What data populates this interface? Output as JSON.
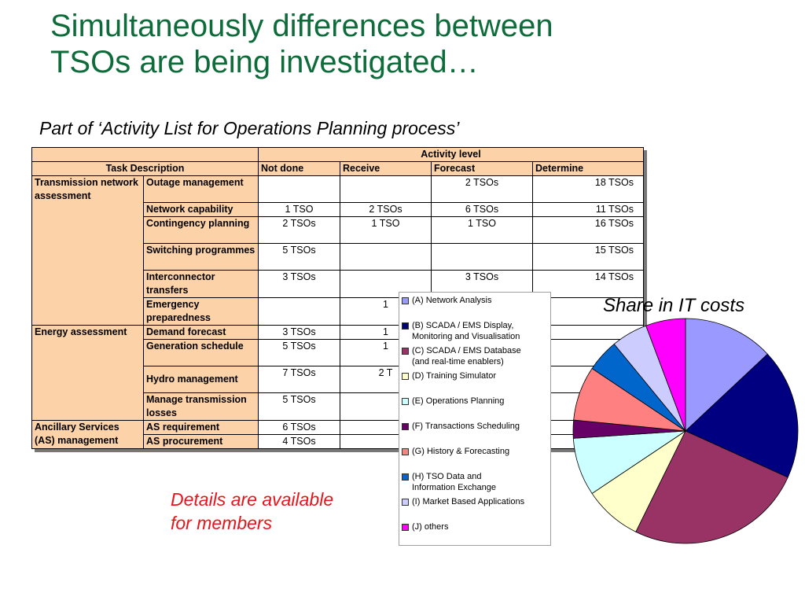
{
  "title": {
    "line1": "Simultaneously differences between",
    "line2": "TSOs are being investigated…"
  },
  "table_caption": "Part of ‘Activity List for Operations Planning process’",
  "table": {
    "activity_level_header": "Activity level",
    "task_description_header": "Task Description",
    "columns": [
      "Not done",
      "Receive",
      "Forecast",
      "Determine"
    ],
    "groups": [
      "Transmission network assessment",
      "Energy assessment",
      "Ancillary Services (AS) management"
    ],
    "rows": [
      {
        "task": "Outage management",
        "not_done": "",
        "receive": "",
        "forecast": "2 TSOs",
        "determine": "18 TSOs"
      },
      {
        "task": "Network capability",
        "not_done": "1 TSO",
        "receive": "2 TSOs",
        "forecast": "6 TSOs",
        "determine": "11 TSOs"
      },
      {
        "task": "Contingency planning",
        "not_done": "2 TSOs",
        "receive": "1 TSO",
        "forecast": "1 TSO",
        "determine": "16 TSOs"
      },
      {
        "task": "Switching programmes",
        "not_done": "5 TSOs",
        "receive": "",
        "forecast": "",
        "determine": "15 TSOs"
      },
      {
        "task": "Interconnector transfers",
        "not_done": "3 TSOs",
        "receive": "",
        "forecast": "3 TSOs",
        "determine": "14 TSOs"
      },
      {
        "task": "Emergency preparedness",
        "not_done": "",
        "receive": "1",
        "forecast": "",
        "determine": ""
      },
      {
        "task": "Demand forecast",
        "not_done": "3 TSOs",
        "receive": "1",
        "forecast": "",
        "determine": ""
      },
      {
        "task": "Generation schedule",
        "not_done": "5 TSOs",
        "receive": "1",
        "forecast": "",
        "determine": ""
      },
      {
        "task": "Hydro management",
        "not_done": "7 TSOs",
        "receive": "2 T",
        "forecast": "",
        "determine": ""
      },
      {
        "task": "Manage transmission losses",
        "not_done": "5 TSOs",
        "receive": "",
        "forecast": "",
        "determine": ""
      },
      {
        "task": "AS requirement",
        "not_done": "6 TSOs",
        "receive": "",
        "forecast": "",
        "determine": ""
      },
      {
        "task": "AS procurement",
        "not_done": "4 TSOs",
        "receive": "",
        "forecast": "",
        "determine": ""
      }
    ]
  },
  "share_caption": "Share in IT costs",
  "details_note": {
    "line1": "Details are available",
    "line2": "for members"
  },
  "legend": [
    {
      "label": "(A)   Network Analysis",
      "color": "#9999ff"
    },
    {
      "label": "(B)   SCADA / EMS Display,\nMonitoring and Visualisation",
      "color": "#000080"
    },
    {
      "label": "(C)   SCADA / EMS Database\n(and real-time enablers)",
      "color": "#993366"
    },
    {
      "label": "(D)   Training Simulator",
      "color": "#ffffcc"
    },
    {
      "label": "(E)   Operations Planning",
      "color": "#ccffff"
    },
    {
      "label": "(F)  Transactions Scheduling",
      "color": "#660066"
    },
    {
      "label": "(G)   History & Forecasting",
      "color": "#ff8080"
    },
    {
      "label": "(H)   TSO Data and\nInformation Exchange",
      "color": "#0066cc"
    },
    {
      "label": "(I)  Market Based Applications",
      "color": "#ccccff"
    },
    {
      "label": "(J) others",
      "color": "#ff00ff"
    }
  ],
  "chart_data": {
    "type": "pie",
    "title": "Share in IT costs",
    "categories": [
      "(A)   Network Analysis",
      "(B)   SCADA / EMS Display, Monitoring and Visualisation",
      "(C)   SCADA / EMS Database (and real-time enablers)",
      "(D)   Training Simulator",
      "(E)   Operations Planning",
      "(F)  Transactions Scheduling",
      "(G)   History & Forecasting",
      "(H)   TSO Data and Information Exchange",
      "(I)  Market Based Applications",
      "(J) others"
    ],
    "values": [
      12.5,
      18.0,
      24.5,
      8.0,
      8.0,
      2.5,
      7.5,
      4.5,
      5.0,
      5.5
    ],
    "colors": [
      "#9999ff",
      "#000080",
      "#993366",
      "#ffffcc",
      "#ccffff",
      "#660066",
      "#ff8080",
      "#0066cc",
      "#ccccff",
      "#ff00ff"
    ],
    "start_angle_deg": 0,
    "direction": "clockwise",
    "legend_position": "left"
  }
}
